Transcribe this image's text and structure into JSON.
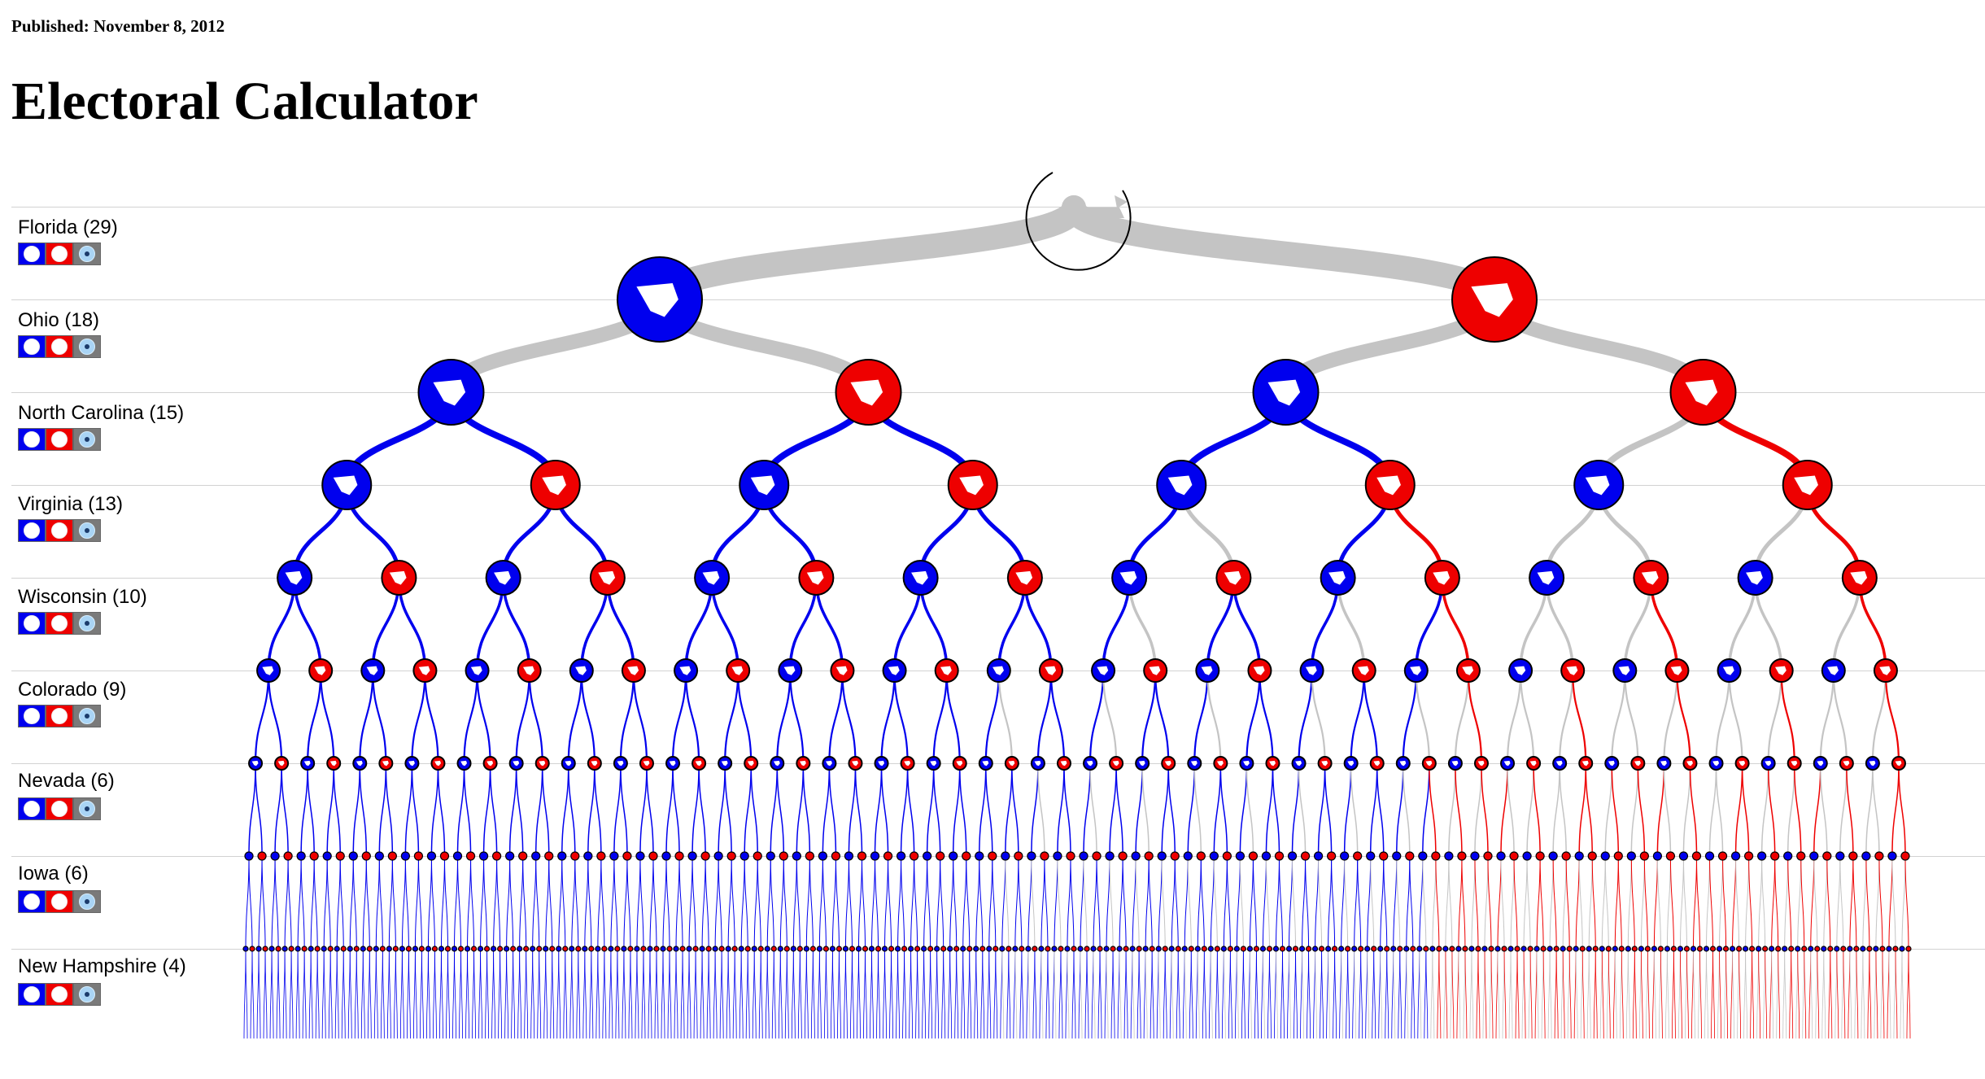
{
  "header": {
    "published": "Published: November 8, 2012",
    "title": "Electoral Calculator"
  },
  "colors": {
    "dem": "#0000ee",
    "rep": "#ee0000",
    "undecided": "#c4c4c4",
    "row_line": "#d2d2d2"
  },
  "states": [
    {
      "label": "Florida (29)",
      "name": "Florida",
      "votes": 29
    },
    {
      "label": "Ohio (18)",
      "name": "Ohio",
      "votes": 18
    },
    {
      "label": "North Carolina (15)",
      "name": "North Carolina",
      "votes": 15
    },
    {
      "label": "Virginia (13)",
      "name": "Virginia",
      "votes": 13
    },
    {
      "label": "Wisconsin (10)",
      "name": "Wisconsin",
      "votes": 10
    },
    {
      "label": "Colorado (9)",
      "name": "Colorado",
      "votes": 9
    },
    {
      "label": "Nevada (6)",
      "name": "Nevada",
      "votes": 6
    },
    {
      "label": "Iowa (6)",
      "name": "Iowa",
      "votes": 6
    },
    {
      "label": "New Hampshire (4)",
      "name": "New Hampshire",
      "votes": 4
    }
  ],
  "controls": {
    "dem_icon": "blue-circle-button",
    "rep_icon": "red-circle-button",
    "tossup_icon": "tossup-target-button"
  },
  "tree": {
    "root_icon": "reset-circle-icon",
    "outcome_colors": [
      "dem",
      "rep",
      "undecided"
    ]
  }
}
